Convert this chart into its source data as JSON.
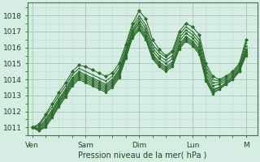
{
  "xlabel": "Pression niveau de la mer( hPa )",
  "ylim": [
    1010.5,
    1018.8
  ],
  "yticks": [
    1011,
    1012,
    1013,
    1014,
    1015,
    1016,
    1017,
    1018
  ],
  "x_day_labels": [
    "Ven",
    "Sam",
    "Dim",
    "Lun",
    "M"
  ],
  "x_day_positions": [
    0,
    24,
    48,
    72,
    96
  ],
  "xlim": [
    -2,
    101
  ],
  "bg_color": "#d6ede4",
  "grid_major_color": "#a8ccbc",
  "grid_minor_color": "#bdddd0",
  "line_color": "#2d6e2d",
  "series": [
    [
      0,
      1011.0,
      3,
      1011.2,
      6,
      1011.8,
      9,
      1012.5,
      12,
      1013.2,
      15,
      1013.8,
      18,
      1014.5,
      21,
      1014.9,
      24,
      1014.8,
      27,
      1014.6,
      30,
      1014.4,
      33,
      1014.2,
      36,
      1014.4,
      39,
      1015.0,
      42,
      1016.2,
      45,
      1017.5,
      48,
      1018.3,
      51,
      1017.8,
      54,
      1016.5,
      57,
      1015.9,
      60,
      1015.5,
      63,
      1015.8,
      66,
      1017.0,
      69,
      1017.5,
      72,
      1017.3,
      75,
      1016.8,
      78,
      1015.0,
      81,
      1014.2,
      84,
      1014.0,
      87,
      1014.2,
      90,
      1014.5,
      93,
      1015.0,
      96,
      1016.5
    ],
    [
      0,
      1011.0,
      3,
      1011.1,
      6,
      1011.7,
      9,
      1012.3,
      12,
      1013.0,
      15,
      1013.6,
      18,
      1014.3,
      21,
      1014.7,
      24,
      1014.5,
      27,
      1014.3,
      30,
      1014.1,
      33,
      1013.9,
      36,
      1014.2,
      39,
      1014.8,
      42,
      1016.0,
      45,
      1017.3,
      48,
      1018.0,
      51,
      1017.4,
      54,
      1016.2,
      57,
      1015.7,
      60,
      1015.4,
      63,
      1015.7,
      66,
      1016.8,
      69,
      1017.3,
      72,
      1017.0,
      75,
      1016.5,
      78,
      1014.8,
      81,
      1014.0,
      84,
      1013.9,
      87,
      1014.1,
      90,
      1014.4,
      93,
      1014.9,
      96,
      1016.3
    ],
    [
      0,
      1011.0,
      3,
      1011.0,
      6,
      1011.5,
      9,
      1012.1,
      12,
      1012.8,
      15,
      1013.4,
      18,
      1014.1,
      21,
      1014.5,
      24,
      1014.3,
      27,
      1014.1,
      30,
      1013.9,
      33,
      1013.7,
      36,
      1014.0,
      39,
      1014.6,
      42,
      1015.8,
      45,
      1017.1,
      48,
      1017.8,
      51,
      1017.2,
      54,
      1016.0,
      57,
      1015.5,
      60,
      1015.2,
      63,
      1015.5,
      66,
      1016.6,
      69,
      1017.1,
      72,
      1016.8,
      75,
      1016.3,
      78,
      1014.6,
      81,
      1013.8,
      84,
      1013.8,
      87,
      1014.0,
      90,
      1014.3,
      93,
      1014.8,
      96,
      1016.1
    ],
    [
      0,
      1011.0,
      3,
      1010.9,
      6,
      1011.4,
      9,
      1012.0,
      12,
      1012.7,
      15,
      1013.3,
      18,
      1014.0,
      21,
      1014.4,
      24,
      1014.2,
      27,
      1014.0,
      30,
      1013.8,
      33,
      1013.6,
      36,
      1013.9,
      39,
      1014.5,
      42,
      1015.7,
      45,
      1017.0,
      48,
      1017.6,
      51,
      1017.0,
      54,
      1015.8,
      57,
      1015.3,
      60,
      1015.0,
      63,
      1015.3,
      66,
      1016.4,
      69,
      1016.9,
      72,
      1016.6,
      75,
      1016.1,
      78,
      1014.4,
      81,
      1013.6,
      84,
      1013.7,
      87,
      1013.9,
      90,
      1014.2,
      93,
      1014.7,
      96,
      1015.9
    ],
    [
      0,
      1011.0,
      3,
      1010.9,
      6,
      1011.3,
      9,
      1011.9,
      12,
      1012.6,
      15,
      1013.2,
      18,
      1013.9,
      21,
      1014.3,
      24,
      1014.1,
      27,
      1013.9,
      30,
      1013.7,
      33,
      1013.5,
      36,
      1013.8,
      39,
      1014.4,
      42,
      1015.6,
      45,
      1016.9,
      48,
      1017.5,
      51,
      1016.8,
      54,
      1015.6,
      57,
      1015.1,
      60,
      1014.8,
      63,
      1015.1,
      66,
      1016.2,
      69,
      1016.7,
      72,
      1016.4,
      75,
      1015.9,
      78,
      1014.2,
      81,
      1013.4,
      84,
      1013.5,
      87,
      1013.8,
      90,
      1014.1,
      93,
      1014.6,
      96,
      1015.8
    ],
    [
      0,
      1011.0,
      3,
      1010.8,
      6,
      1011.2,
      9,
      1011.8,
      12,
      1012.5,
      15,
      1013.1,
      18,
      1013.8,
      21,
      1014.2,
      24,
      1014.0,
      27,
      1013.8,
      30,
      1013.6,
      33,
      1013.4,
      36,
      1013.7,
      39,
      1014.3,
      42,
      1015.5,
      45,
      1016.8,
      48,
      1017.3,
      51,
      1016.7,
      54,
      1015.5,
      57,
      1015.0,
      60,
      1014.7,
      63,
      1015.0,
      66,
      1016.1,
      69,
      1016.6,
      72,
      1016.3,
      75,
      1015.8,
      78,
      1014.1,
      81,
      1013.3,
      84,
      1013.5,
      87,
      1013.8,
      90,
      1014.1,
      93,
      1014.6,
      96,
      1015.7
    ],
    [
      0,
      1011.0,
      3,
      1010.8,
      6,
      1011.1,
      9,
      1011.7,
      12,
      1012.4,
      15,
      1013.0,
      18,
      1013.7,
      21,
      1014.1,
      24,
      1013.9,
      27,
      1013.7,
      30,
      1013.5,
      33,
      1013.3,
      36,
      1013.6,
      39,
      1014.2,
      42,
      1015.4,
      45,
      1016.7,
      48,
      1017.2,
      51,
      1016.6,
      54,
      1015.4,
      57,
      1014.9,
      60,
      1014.6,
      63,
      1014.9,
      66,
      1016.0,
      69,
      1016.5,
      72,
      1016.2,
      75,
      1015.7,
      78,
      1014.0,
      81,
      1013.2,
      84,
      1013.4,
      87,
      1013.7,
      90,
      1014.0,
      93,
      1014.5,
      96,
      1015.6
    ],
    [
      0,
      1011.0,
      3,
      1010.8,
      6,
      1011.0,
      9,
      1011.6,
      12,
      1012.3,
      15,
      1012.9,
      18,
      1013.6,
      21,
      1014.0,
      24,
      1013.8,
      27,
      1013.6,
      30,
      1013.4,
      33,
      1013.2,
      36,
      1013.5,
      39,
      1014.1,
      42,
      1015.3,
      45,
      1016.6,
      48,
      1017.1,
      51,
      1016.5,
      54,
      1015.3,
      57,
      1014.8,
      60,
      1014.5,
      63,
      1014.8,
      66,
      1015.9,
      69,
      1016.4,
      72,
      1016.1,
      75,
      1015.6,
      78,
      1013.9,
      81,
      1013.1,
      84,
      1013.4,
      87,
      1013.7,
      90,
      1014.0,
      93,
      1014.5,
      96,
      1015.5
    ]
  ]
}
